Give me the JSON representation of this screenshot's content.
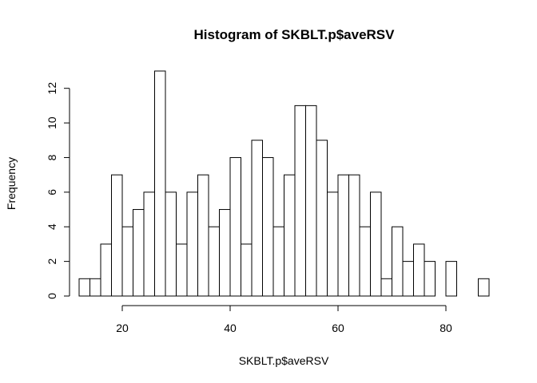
{
  "chart_data": {
    "type": "bar",
    "title": "Histogram of SKBLT.p$aveRSV",
    "xlabel": "SKBLT.p$aveRSV",
    "ylabel": "Frequency",
    "bin_width": 2,
    "xlim": [
      12,
      88
    ],
    "ylim": [
      0,
      13
    ],
    "x_ticks": [
      20,
      40,
      60,
      80
    ],
    "y_ticks": [
      0,
      2,
      4,
      6,
      8,
      10,
      12
    ],
    "bins": [
      {
        "start": 12,
        "end": 14,
        "count": 1
      },
      {
        "start": 14,
        "end": 16,
        "count": 1
      },
      {
        "start": 16,
        "end": 18,
        "count": 3
      },
      {
        "start": 18,
        "end": 20,
        "count": 7
      },
      {
        "start": 20,
        "end": 22,
        "count": 4
      },
      {
        "start": 22,
        "end": 24,
        "count": 5
      },
      {
        "start": 24,
        "end": 26,
        "count": 6
      },
      {
        "start": 26,
        "end": 28,
        "count": 13
      },
      {
        "start": 28,
        "end": 30,
        "count": 6
      },
      {
        "start": 30,
        "end": 32,
        "count": 3
      },
      {
        "start": 32,
        "end": 34,
        "count": 6
      },
      {
        "start": 34,
        "end": 36,
        "count": 7
      },
      {
        "start": 36,
        "end": 38,
        "count": 4
      },
      {
        "start": 38,
        "end": 40,
        "count": 5
      },
      {
        "start": 40,
        "end": 42,
        "count": 8
      },
      {
        "start": 42,
        "end": 44,
        "count": 3
      },
      {
        "start": 44,
        "end": 46,
        "count": 9
      },
      {
        "start": 46,
        "end": 48,
        "count": 8
      },
      {
        "start": 48,
        "end": 50,
        "count": 4
      },
      {
        "start": 50,
        "end": 52,
        "count": 7
      },
      {
        "start": 52,
        "end": 54,
        "count": 11
      },
      {
        "start": 54,
        "end": 56,
        "count": 11
      },
      {
        "start": 56,
        "end": 58,
        "count": 9
      },
      {
        "start": 58,
        "end": 60,
        "count": 6
      },
      {
        "start": 60,
        "end": 62,
        "count": 7
      },
      {
        "start": 62,
        "end": 64,
        "count": 7
      },
      {
        "start": 64,
        "end": 66,
        "count": 4
      },
      {
        "start": 66,
        "end": 68,
        "count": 6
      },
      {
        "start": 68,
        "end": 70,
        "count": 1
      },
      {
        "start": 70,
        "end": 72,
        "count": 4
      },
      {
        "start": 72,
        "end": 74,
        "count": 2
      },
      {
        "start": 74,
        "end": 76,
        "count": 3
      },
      {
        "start": 76,
        "end": 78,
        "count": 2
      },
      {
        "start": 78,
        "end": 80,
        "count": 0
      },
      {
        "start": 80,
        "end": 82,
        "count": 2
      },
      {
        "start": 82,
        "end": 84,
        "count": 0
      },
      {
        "start": 84,
        "end": 86,
        "count": 0
      },
      {
        "start": 86,
        "end": 88,
        "count": 1
      }
    ],
    "bar_fill": "#ffffff",
    "bar_stroke": "#000000",
    "grid": false,
    "legend": "none"
  }
}
